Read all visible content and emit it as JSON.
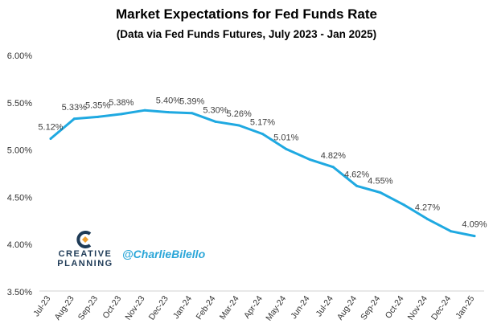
{
  "chart_data": {
    "type": "line",
    "title": "Market Expectations for Fed Funds Rate",
    "subtitle": "(Data via Fed Funds Futures, July 2023 - Jan 2025)",
    "categories": [
      "Jul-23",
      "Aug-23",
      "Sep-23",
      "Oct-23",
      "Nov-23",
      "Dec-23",
      "Jan-24",
      "Feb-24",
      "Mar-24",
      "Apr-24",
      "May-24",
      "Jun-24",
      "Jul-24",
      "Aug-24",
      "Sep-24",
      "Oct-24",
      "Nov-24",
      "Dec-24",
      "Jan-25"
    ],
    "series": [
      {
        "values": [
          5.12,
          5.33,
          5.35,
          5.38,
          5.42,
          5.4,
          5.39,
          5.3,
          5.26,
          5.17,
          5.01,
          4.9,
          4.82,
          4.62,
          4.55,
          4.42,
          4.27,
          4.14,
          4.09
        ],
        "labels": [
          "5.12%",
          "5.33%",
          "5.35%",
          "5.38%",
          "",
          "5.40%",
          "5.39%",
          "5.30%",
          "5.26%",
          "5.17%",
          "5.01%",
          "",
          "4.82%",
          "4.62%",
          "4.55%",
          "",
          "4.27%",
          "",
          "4.09%"
        ],
        "color": "#1fa9e1"
      }
    ],
    "ylim": [
      3.5,
      6.0
    ],
    "yticks": [
      3.5,
      4.0,
      4.5,
      5.0,
      5.5,
      6.0
    ],
    "ytick_labels": [
      "3.50%",
      "4.00%",
      "4.50%",
      "5.00%",
      "5.50%",
      "6.00%"
    ],
    "grid": false,
    "legend": "none"
  },
  "branding": {
    "logo_line1": "CREATIVE",
    "logo_line2": "PLANNING",
    "handle": "@CharlieBilello"
  },
  "colors": {
    "line": "#1fa9e1",
    "logo": "#1f3b57",
    "logo_accent": "#f0a030",
    "handle": "#2aa6d8"
  }
}
